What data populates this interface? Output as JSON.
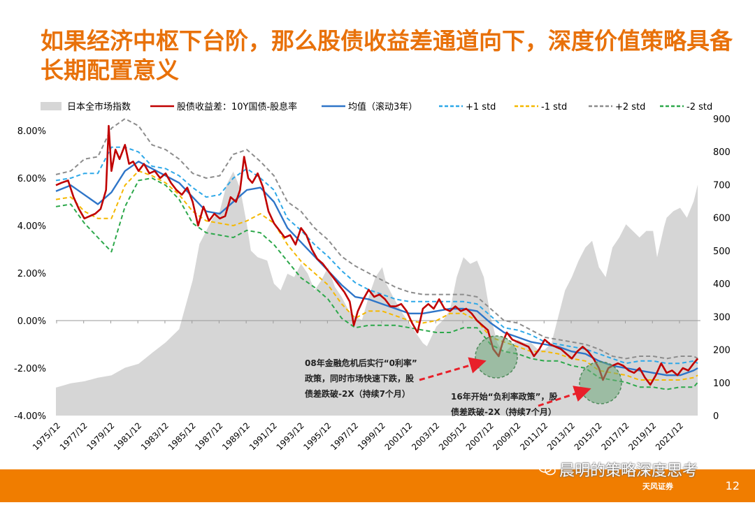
{
  "slide": {
    "title": "如果经济中枢下台阶，那么股债收益差通道向下，深度价值策略具备长期配置意义",
    "page_number": "12",
    "watermark": "晨明的策略深度思考",
    "brand": "天风证券"
  },
  "colors": {
    "title": "#E8710A",
    "footer": "#F07D00",
    "nikkei": "#D6D6D6",
    "spread": "#C00000",
    "mean": "#2E75C8",
    "plus1": "#2EA8E8",
    "minus1": "#F5B800",
    "plus2": "#8C8C8C",
    "minus2": "#2DA84B",
    "annotation": "#E8202A",
    "circle": "#6EA87A"
  },
  "chart_data": {
    "type": "line",
    "legend": [
      {
        "key": "nikkei",
        "label": "日本全市场指数"
      },
      {
        "key": "spread",
        "label": "股债收益差：10Y国债-股息率"
      },
      {
        "key": "mean",
        "label": "均值（滚动3年）"
      },
      {
        "key": "plus1",
        "label": "+1 std"
      },
      {
        "key": "minus1",
        "label": "-1 std"
      },
      {
        "key": "plus2",
        "label": "+2 std"
      },
      {
        "key": "minus2",
        "label": "-2 std"
      }
    ],
    "legend_position": "top",
    "y_left": {
      "min": -4,
      "max": 8,
      "ticks": [
        "-4.00%",
        "-2.00%",
        "0.00%",
        "2.00%",
        "4.00%",
        "6.00%",
        "8.00%"
      ],
      "values": [
        -4,
        -2,
        0,
        2,
        4,
        6,
        8
      ]
    },
    "y_right": {
      "min": 0,
      "max": 900,
      "ticks": [
        "0",
        "100",
        "200",
        "300",
        "400",
        "500",
        "600",
        "700",
        "800",
        "900"
      ],
      "values": [
        0,
        100,
        200,
        300,
        400,
        500,
        600,
        700,
        800,
        900
      ]
    },
    "x_range": [
      1975.9,
      2023.5
    ],
    "x_ticks": [
      "1975/12",
      "1977/12",
      "1979/12",
      "1981/12",
      "1983/12",
      "1985/12",
      "1987/12",
      "1989/12",
      "1991/12",
      "1993/12",
      "1995/12",
      "1997/12",
      "1999/12",
      "2001/12",
      "2003/12",
      "2005/12",
      "2007/12",
      "2009/12",
      "2011/12",
      "2013/12",
      "2015/12",
      "2017/12",
      "2019/12",
      "2021/12"
    ],
    "x_tick_years": [
      1975.95,
      1977.95,
      1979.95,
      1981.95,
      1983.95,
      1985.95,
      1987.95,
      1989.95,
      1991.95,
      1993.95,
      1995.95,
      1997.95,
      1999.95,
      2001.95,
      2003.95,
      2005.95,
      2007.95,
      2009.95,
      2011.95,
      2013.95,
      2015.95,
      2017.95,
      2019.95,
      2021.95
    ],
    "series": [
      {
        "key": "nikkei",
        "axis": "right",
        "style": "area",
        "x": [
          1975.9,
          1977,
          1978,
          1979,
          1980,
          1981,
          1982,
          1983,
          1984,
          1985,
          1986,
          1986.5,
          1987,
          1987.5,
          1988,
          1988.5,
          1989,
          1989.5,
          1990,
          1990.3,
          1990.8,
          1991.5,
          1992,
          1992.5,
          1993,
          1993.5,
          1994,
          1994.5,
          1995,
          1995.5,
          1996,
          1996.5,
          1997,
          1997.5,
          1998,
          1998.5,
          1999,
          1999.5,
          2000,
          2000.3,
          2000.8,
          2001.5,
          2002,
          2002.5,
          2003,
          2003.3,
          2004,
          2004.5,
          2005,
          2005.5,
          2006,
          2006.5,
          2007,
          2007.5,
          2008,
          2008.5,
          2009,
          2009.5,
          2010,
          2010.5,
          2011,
          2011.5,
          2012,
          2012.5,
          2013,
          2013.5,
          2014,
          2014.5,
          2015,
          2015.5,
          2016,
          2016.5,
          2017,
          2017.5,
          2018,
          2018.5,
          2019,
          2019.5,
          2020,
          2020.3,
          2020.8,
          2021,
          2021.5,
          2022,
          2022.5,
          2023,
          2023.3
        ],
        "y": [
          85,
          98,
          104,
          115,
          122,
          145,
          157,
          190,
          222,
          262,
          410,
          520,
          560,
          600,
          620,
          700,
          740,
          690,
          580,
          500,
          480,
          470,
          400,
          380,
          430,
          420,
          460,
          430,
          380,
          410,
          450,
          390,
          360,
          320,
          300,
          290,
          360,
          420,
          450,
          400,
          360,
          310,
          280,
          250,
          220,
          210,
          270,
          290,
          320,
          420,
          480,
          460,
          470,
          420,
          300,
          220,
          190,
          210,
          230,
          220,
          220,
          200,
          200,
          220,
          300,
          380,
          420,
          470,
          510,
          530,
          450,
          420,
          510,
          540,
          580,
          560,
          540,
          560,
          560,
          480,
          570,
          600,
          620,
          630,
          600,
          650,
          700
        ]
      },
      {
        "key": "plus2",
        "axis": "left",
        "style": "dash",
        "x": [
          1975.9,
          1977,
          1978,
          1979,
          1980,
          1981,
          1982,
          1983,
          1984,
          1985,
          1986,
          1987,
          1988,
          1989,
          1990,
          1991,
          1992,
          1993,
          1994,
          1995,
          1996,
          1997,
          1998,
          1999,
          2000,
          2001,
          2002,
          2003,
          2004,
          2005,
          2006,
          2007,
          2008,
          2009,
          2010,
          2011,
          2012,
          2013,
          2014,
          2015,
          2016,
          2017,
          2018,
          2019,
          2020,
          2021,
          2022,
          2023,
          2023.3
        ],
        "y": [
          6.15,
          6.3,
          6.8,
          6.9,
          8.1,
          8.5,
          8.2,
          7.4,
          7.2,
          6.8,
          6.2,
          6.0,
          6.1,
          7.0,
          7.2,
          6.7,
          6.1,
          5.0,
          4.6,
          3.9,
          3.4,
          2.7,
          2.3,
          2.0,
          1.7,
          1.4,
          1.2,
          1.1,
          1.1,
          1.1,
          1.1,
          1.0,
          0.5,
          0.0,
          -0.1,
          -0.4,
          -0.7,
          -0.8,
          -0.9,
          -1.0,
          -1.2,
          -1.5,
          -1.6,
          -1.5,
          -1.5,
          -1.6,
          -1.5,
          -1.5,
          -1.6
        ]
      },
      {
        "key": "plus1",
        "axis": "left",
        "style": "dash",
        "x": [
          1975.9,
          1977,
          1978,
          1979,
          1980,
          1981,
          1982,
          1983,
          1984,
          1985,
          1986,
          1987,
          1988,
          1989,
          1990,
          1991,
          1992,
          1993,
          1994,
          1995,
          1996,
          1997,
          1998,
          1999,
          2000,
          2001,
          2002,
          2003,
          2004,
          2005,
          2006,
          2007,
          2008,
          2009,
          2010,
          2011,
          2012,
          2013,
          2014,
          2015,
          2016,
          2017,
          2018,
          2019,
          2020,
          2021,
          2022,
          2023,
          2023.3
        ],
        "y": [
          5.9,
          6.0,
          6.2,
          6.2,
          7.3,
          7.3,
          7.1,
          6.5,
          6.4,
          6.1,
          5.6,
          5.2,
          5.3,
          6.0,
          6.4,
          6.0,
          5.5,
          4.3,
          3.8,
          3.2,
          2.7,
          2.1,
          1.6,
          1.3,
          1.1,
          0.9,
          0.8,
          0.8,
          0.8,
          0.8,
          0.8,
          0.7,
          0.2,
          -0.3,
          -0.4,
          -0.6,
          -0.9,
          -1.0,
          -1.1,
          -1.2,
          -1.4,
          -1.6,
          -1.8,
          -1.7,
          -1.7,
          -1.8,
          -1.8,
          -1.7,
          -1.8
        ]
      },
      {
        "key": "mean",
        "axis": "left",
        "style": "solid",
        "x": [
          1975.9,
          1977,
          1978,
          1979,
          1980,
          1981,
          1982,
          1983,
          1984,
          1985,
          1986,
          1987,
          1988,
          1989,
          1990,
          1991,
          1992,
          1993,
          1994,
          1995,
          1996,
          1997,
          1998,
          1999,
          2000,
          2001,
          2002,
          2003,
          2004,
          2005,
          2006,
          2007,
          2008,
          2009,
          2010,
          2011,
          2012,
          2013,
          2014,
          2015,
          2016,
          2017,
          2018,
          2019,
          2020,
          2021,
          2022,
          2023,
          2023.3
        ],
        "y": [
          5.45,
          5.7,
          5.3,
          4.9,
          5.4,
          6.3,
          6.7,
          6.4,
          6.1,
          5.8,
          5.2,
          4.6,
          4.5,
          5.0,
          5.5,
          5.6,
          5.0,
          3.9,
          3.3,
          2.7,
          2.1,
          1.5,
          1.0,
          0.9,
          0.7,
          0.5,
          0.3,
          0.3,
          0.4,
          0.5,
          0.5,
          0.4,
          -0.1,
          -0.5,
          -0.7,
          -0.9,
          -1.0,
          -1.1,
          -1.3,
          -1.4,
          -1.7,
          -1.9,
          -2.0,
          -2.1,
          -2.2,
          -2.3,
          -2.3,
          -2.1,
          -2.0
        ]
      },
      {
        "key": "minus1",
        "axis": "left",
        "style": "dash",
        "x": [
          1975.9,
          1977,
          1978,
          1979,
          1980,
          1981,
          1982,
          1983,
          1984,
          1985,
          1986,
          1987,
          1988,
          1989,
          1990,
          1991,
          1992,
          1993,
          1994,
          1995,
          1996,
          1997,
          1998,
          1999,
          2000,
          2001,
          2002,
          2003,
          2004,
          2005,
          2006,
          2007,
          2008,
          2009,
          2010,
          2011,
          2012,
          2013,
          2014,
          2015,
          2016,
          2017,
          2018,
          2019,
          2020,
          2021,
          2022,
          2023,
          2023.3
        ],
        "y": [
          5.1,
          5.2,
          4.6,
          4.3,
          4.3,
          5.7,
          6.3,
          6.1,
          5.8,
          5.3,
          4.6,
          4.2,
          4.1,
          4.0,
          4.2,
          4.5,
          4.1,
          3.2,
          2.5,
          2.0,
          1.5,
          0.7,
          0.1,
          0.4,
          0.4,
          0.2,
          0.0,
          -0.1,
          0.0,
          0.3,
          0.3,
          0.0,
          -0.7,
          -0.9,
          -1.1,
          -1.3,
          -1.3,
          -1.4,
          -1.6,
          -1.7,
          -2.1,
          -2.2,
          -2.3,
          -2.5,
          -2.5,
          -2.5,
          -2.5,
          -2.4,
          -2.3
        ]
      },
      {
        "key": "minus2",
        "axis": "left",
        "style": "dash",
        "x": [
          1975.9,
          1977,
          1978,
          1979,
          1980,
          1981,
          1982,
          1983,
          1984,
          1985,
          1986,
          1987,
          1988,
          1989,
          1990,
          1991,
          1992,
          1993,
          1994,
          1995,
          1996,
          1997,
          1998,
          1999,
          2000,
          2001,
          2002,
          2003,
          2004,
          2005,
          2006,
          2007,
          2008,
          2009,
          2010,
          2011,
          2012,
          2013,
          2014,
          2015,
          2016,
          2017,
          2018,
          2019,
          2020,
          2021,
          2022,
          2023,
          2023.3
        ],
        "y": [
          4.8,
          4.9,
          4.1,
          3.5,
          2.9,
          4.8,
          5.9,
          6.0,
          5.7,
          5.1,
          4.1,
          3.7,
          3.6,
          3.5,
          3.8,
          3.7,
          3.2,
          2.5,
          1.8,
          1.4,
          0.9,
          0.1,
          -0.3,
          -0.2,
          -0.2,
          -0.2,
          -0.3,
          -0.4,
          -0.5,
          -0.5,
          -0.3,
          -0.3,
          -1.0,
          -1.3,
          -1.4,
          -1.6,
          -1.7,
          -1.7,
          -1.9,
          -2.0,
          -2.4,
          -2.5,
          -2.6,
          -2.8,
          -2.8,
          -2.9,
          -2.8,
          -2.8,
          -2.6
        ]
      },
      {
        "key": "spread",
        "axis": "left",
        "style": "solid",
        "x": [
          1975.9,
          1976.3,
          1976.8,
          1977.2,
          1977.6,
          1978.0,
          1978.4,
          1978.8,
          1979.2,
          1979.6,
          1979.8,
          1980.0,
          1980.3,
          1980.6,
          1981.0,
          1981.3,
          1981.6,
          1982.0,
          1982.4,
          1982.8,
          1983.2,
          1983.6,
          1984.0,
          1984.4,
          1984.8,
          1985.2,
          1985.6,
          1986.0,
          1986.4,
          1986.8,
          1987.2,
          1987.6,
          1988.0,
          1988.4,
          1988.8,
          1989.2,
          1989.5,
          1989.8,
          1990.1,
          1990.4,
          1990.8,
          1991.2,
          1991.6,
          1992.0,
          1992.4,
          1992.8,
          1993.2,
          1993.6,
          1994.0,
          1994.4,
          1994.8,
          1995.2,
          1995.6,
          1996.0,
          1996.4,
          1996.8,
          1997.2,
          1997.6,
          1997.9,
          1998.2,
          1998.6,
          1999.0,
          1999.4,
          1999.8,
          2000.2,
          2000.6,
          2001.0,
          2001.4,
          2001.8,
          2002.2,
          2002.6,
          2003.0,
          2003.4,
          2003.8,
          2004.2,
          2004.6,
          2005.0,
          2005.4,
          2005.8,
          2006.2,
          2006.6,
          2007.0,
          2007.4,
          2007.8,
          2008.2,
          2008.6,
          2008.9,
          2009.2,
          2009.6,
          2010.0,
          2010.4,
          2010.8,
          2011.2,
          2011.6,
          2012.0,
          2012.4,
          2012.8,
          2013.2,
          2013.6,
          2014.0,
          2014.4,
          2014.8,
          2015.2,
          2015.6,
          2016.0,
          2016.3,
          2016.7,
          2017.0,
          2017.4,
          2017.8,
          2018.2,
          2018.6,
          2019.0,
          2019.4,
          2019.8,
          2020.2,
          2020.6,
          2021.0,
          2021.4,
          2021.8,
          2022.2,
          2022.6,
          2023.0,
          2023.3
        ],
        "y": [
          5.7,
          5.8,
          5.9,
          5.2,
          4.7,
          4.3,
          4.4,
          4.5,
          4.7,
          5.5,
          8.2,
          6.3,
          7.2,
          6.8,
          7.4,
          6.6,
          6.7,
          6.3,
          6.6,
          6.2,
          6.3,
          6.0,
          6.2,
          5.8,
          5.5,
          5.3,
          5.6,
          5.0,
          4.0,
          4.8,
          4.2,
          4.5,
          4.3,
          4.4,
          5.2,
          5.0,
          5.5,
          6.9,
          6.0,
          5.8,
          6.2,
          5.6,
          4.6,
          4.1,
          3.8,
          3.5,
          3.6,
          3.2,
          3.9,
          3.6,
          3.0,
          2.6,
          2.4,
          2.1,
          1.8,
          1.5,
          1.2,
          0.8,
          -0.2,
          0.4,
          0.9,
          1.3,
          1.0,
          1.1,
          0.9,
          0.6,
          0.6,
          0.7,
          0.4,
          -0.1,
          -0.5,
          0.5,
          0.7,
          0.5,
          0.9,
          0.5,
          0.4,
          0.6,
          0.4,
          0.5,
          0.3,
          0.0,
          -0.2,
          -0.4,
          -1.2,
          -1.5,
          -0.9,
          -0.5,
          -0.8,
          -0.9,
          -1.0,
          -1.1,
          -1.5,
          -1.2,
          -0.8,
          -1.0,
          -1.1,
          -1.2,
          -1.4,
          -1.6,
          -1.3,
          -1.1,
          -1.3,
          -1.6,
          -2.0,
          -2.5,
          -2.0,
          -1.9,
          -1.8,
          -1.9,
          -2.1,
          -2.2,
          -2.0,
          -2.4,
          -2.7,
          -2.3,
          -1.8,
          -2.2,
          -2.1,
          -2.3,
          -2.0,
          -2.1,
          -1.8,
          -1.6
        ]
      }
    ],
    "annotations": [
      {
        "key": "crisis08",
        "lines": [
          "08年金融危机后实行“0利率”",
          "政策，同时市场快速下跌，股",
          "债差跌破-2X（持续7个月）"
        ]
      },
      {
        "key": "neg16",
        "lines": [
          "16年开始“负利率政策”，股",
          "债差跌破-2X（持续7个月）"
        ]
      }
    ]
  }
}
